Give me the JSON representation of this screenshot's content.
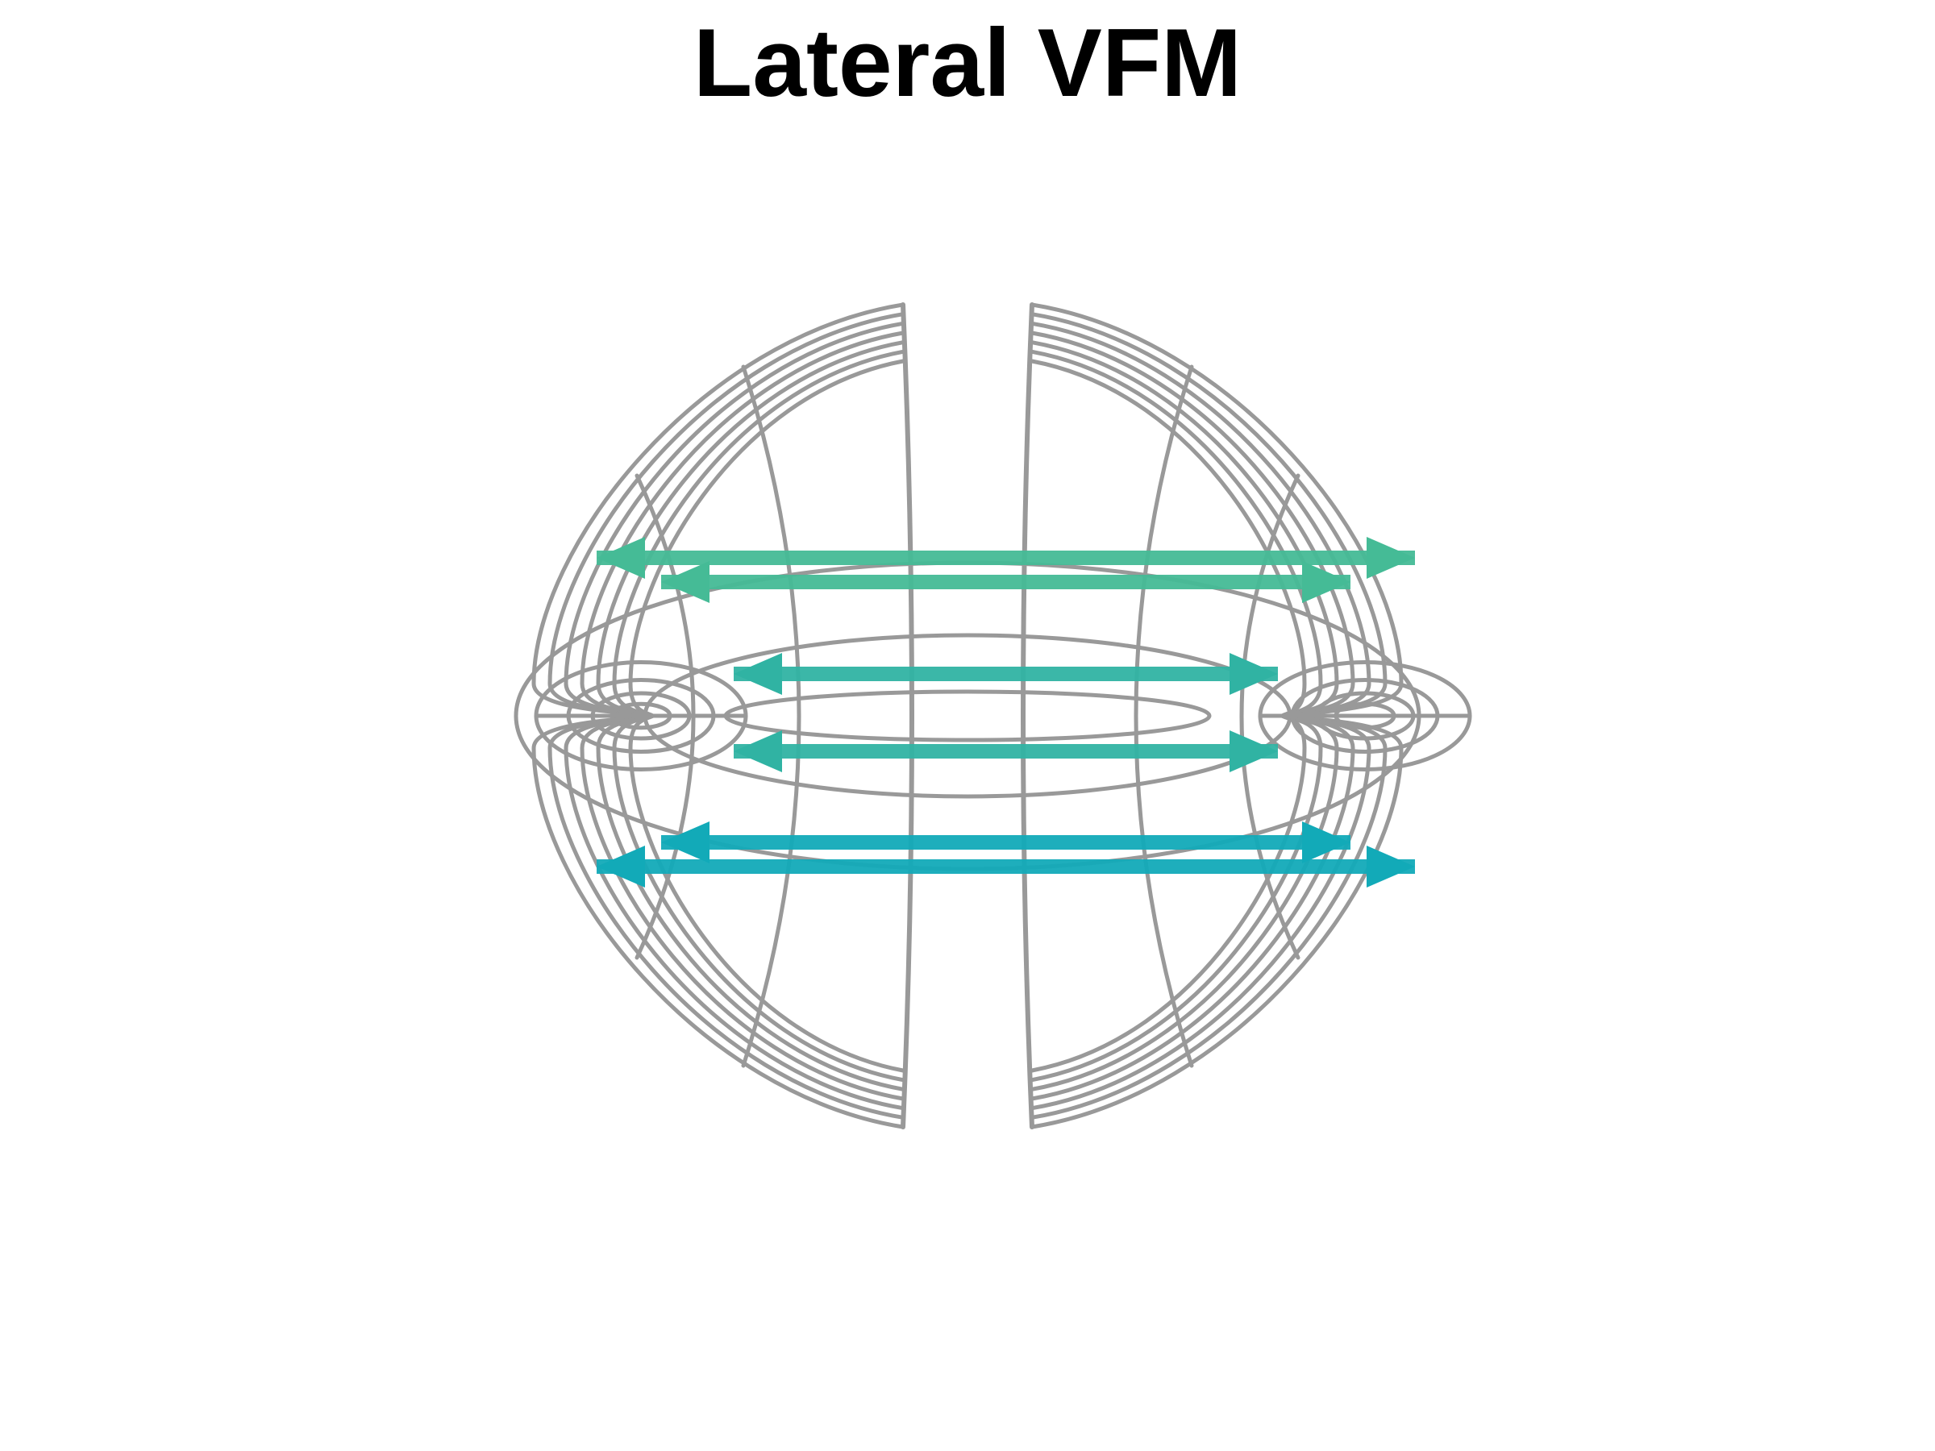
{
  "title": "Lateral VFM",
  "colors": {
    "grid": "#999999",
    "arrow_top": "#45bb96",
    "arrow_mid": "#30b3a3",
    "arrow_bottom": "#12aab8",
    "background": "#ffffff"
  },
  "figure": {
    "lobes": [
      "left",
      "right"
    ],
    "arrow_rows": [
      {
        "row": "upper-outer",
        "color_key": "arrow_top"
      },
      {
        "row": "upper-inner",
        "color_key": "arrow_top"
      },
      {
        "row": "middle-upper",
        "color_key": "arrow_mid"
      },
      {
        "row": "middle-lower",
        "color_key": "arrow_mid"
      },
      {
        "row": "lower-inner",
        "color_key": "arrow_bottom"
      },
      {
        "row": "lower-outer",
        "color_key": "arrow_bottom"
      }
    ]
  }
}
